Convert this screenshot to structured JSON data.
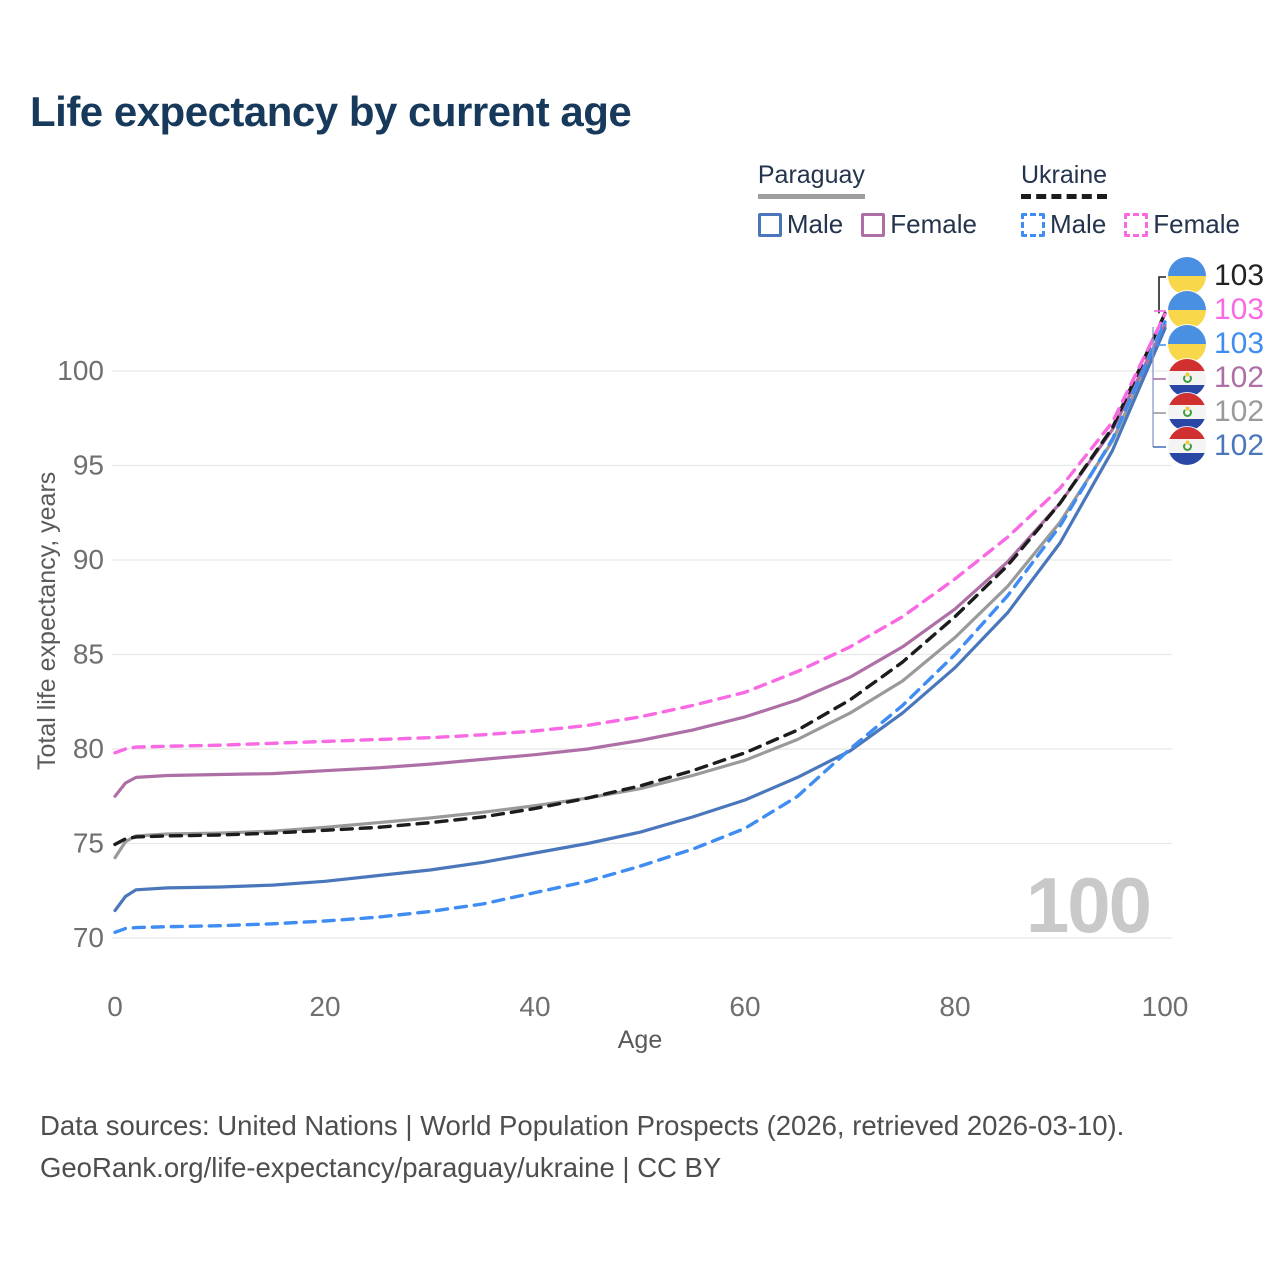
{
  "watermark": "100",
  "legend": {
    "groups": [
      {
        "label": "Paraguay",
        "line_style": "solid",
        "underline_color": "#9e9e9e",
        "items": [
          {
            "label": "Male",
            "color": "#4a77bb"
          },
          {
            "label": "Female",
            "color": "#ad6fa6"
          }
        ]
      },
      {
        "label": "Ukraine",
        "line_style": "dashed",
        "underline_color": "#1c1c1c",
        "items": [
          {
            "label": "Male",
            "color": "#3f8df2"
          },
          {
            "label": "Female",
            "color": "#f969e3"
          }
        ]
      }
    ]
  },
  "flags": {
    "ua": {
      "top": "#4a90e2",
      "bottom": "#f8d74a"
    },
    "py": {
      "red": "#d13030",
      "white": "#f4f4f4",
      "blue": "#2a47a5",
      "green": "#3f9e3f",
      "star": "#f0c93c"
    }
  },
  "chart_data": {
    "type": "line",
    "title": "Life expectancy by current age",
    "xlabel": "Age",
    "ylabel": "Total life expectancy, years",
    "xlim": [
      0,
      100
    ],
    "ylim": [
      69.5,
      103.5
    ],
    "xticks": [
      0,
      20,
      40,
      60,
      80,
      100
    ],
    "yticks": [
      70,
      75,
      80,
      85,
      90,
      95,
      100
    ],
    "grid": "horizontal",
    "x": [
      0,
      1,
      2,
      5,
      10,
      15,
      20,
      25,
      30,
      35,
      40,
      45,
      50,
      55,
      60,
      65,
      70,
      75,
      80,
      85,
      90,
      95,
      100
    ],
    "series": [
      {
        "name": "Paraguay",
        "country": "Paraguay",
        "sex": "both",
        "style": "solid",
        "color": "#9a9a9a",
        "values": [
          74.25,
          75.1,
          75.4,
          75.5,
          75.55,
          75.65,
          75.85,
          76.1,
          76.35,
          76.65,
          77.0,
          77.4,
          77.9,
          78.6,
          79.4,
          80.5,
          81.9,
          83.6,
          85.9,
          88.6,
          92.0,
          96.3,
          102.35
        ]
      },
      {
        "name": "Paraguay Female",
        "country": "Paraguay",
        "sex": "female",
        "style": "solid",
        "color": "#ad6fa6",
        "values": [
          77.5,
          78.2,
          78.5,
          78.6,
          78.65,
          78.7,
          78.85,
          79.0,
          79.2,
          79.45,
          79.7,
          80.0,
          80.45,
          81.0,
          81.7,
          82.6,
          83.8,
          85.4,
          87.4,
          89.9,
          93.0,
          96.9,
          102.45
        ]
      },
      {
        "name": "Paraguay Male",
        "country": "Paraguay",
        "sex": "male",
        "style": "solid",
        "color": "#4a77bb",
        "values": [
          71.45,
          72.2,
          72.55,
          72.65,
          72.7,
          72.8,
          73.0,
          73.3,
          73.6,
          74.0,
          74.5,
          75.0,
          75.6,
          76.4,
          77.3,
          78.5,
          79.9,
          81.9,
          84.3,
          87.2,
          90.9,
          95.8,
          102.25
        ]
      },
      {
        "name": "Ukraine",
        "country": "Ukraine",
        "sex": "both",
        "style": "dashed",
        "color": "#1c1c1c",
        "values": [
          74.95,
          75.25,
          75.35,
          75.4,
          75.45,
          75.55,
          75.7,
          75.85,
          76.1,
          76.4,
          76.85,
          77.4,
          78.05,
          78.85,
          79.8,
          81.0,
          82.6,
          84.6,
          87.0,
          89.7,
          93.0,
          97.0,
          103.05
        ]
      },
      {
        "name": "Ukraine Male",
        "country": "Ukraine",
        "sex": "male",
        "style": "dashed",
        "color": "#3f8df2",
        "values": [
          70.3,
          70.5,
          70.55,
          70.6,
          70.65,
          70.75,
          70.9,
          71.1,
          71.4,
          71.8,
          72.4,
          73.0,
          73.8,
          74.7,
          75.8,
          77.5,
          80.0,
          82.3,
          85.0,
          88.1,
          91.8,
          96.4,
          102.6
        ]
      },
      {
        "name": "Ukraine Female",
        "country": "Ukraine",
        "sex": "female",
        "style": "dashed",
        "color": "#f969e3",
        "values": [
          79.8,
          80.0,
          80.1,
          80.15,
          80.2,
          80.3,
          80.4,
          80.5,
          80.6,
          80.75,
          80.95,
          81.25,
          81.7,
          82.3,
          83.0,
          84.1,
          85.4,
          87.0,
          89.0,
          91.2,
          93.8,
          97.3,
          103.0
        ]
      }
    ],
    "end_labels": [
      {
        "flag": "ua",
        "value": "103",
        "color": "#222222"
      },
      {
        "flag": "ua",
        "value": "103",
        "color": "#f969e3"
      },
      {
        "flag": "ua",
        "value": "103",
        "color": "#3f8df2"
      },
      {
        "flag": "py",
        "value": "102",
        "color": "#ad6fa6"
      },
      {
        "flag": "py",
        "value": "102",
        "color": "#9a9a9a"
      },
      {
        "flag": "py",
        "value": "102",
        "color": "#4a77bb"
      }
    ]
  },
  "footer": {
    "line1": "Data sources: United Nations | World Population Prospects (2026, retrieved 2026-03-10).",
    "line2": "GeoRank.org/life-expectancy/paraguay/ukraine | CC BY"
  }
}
